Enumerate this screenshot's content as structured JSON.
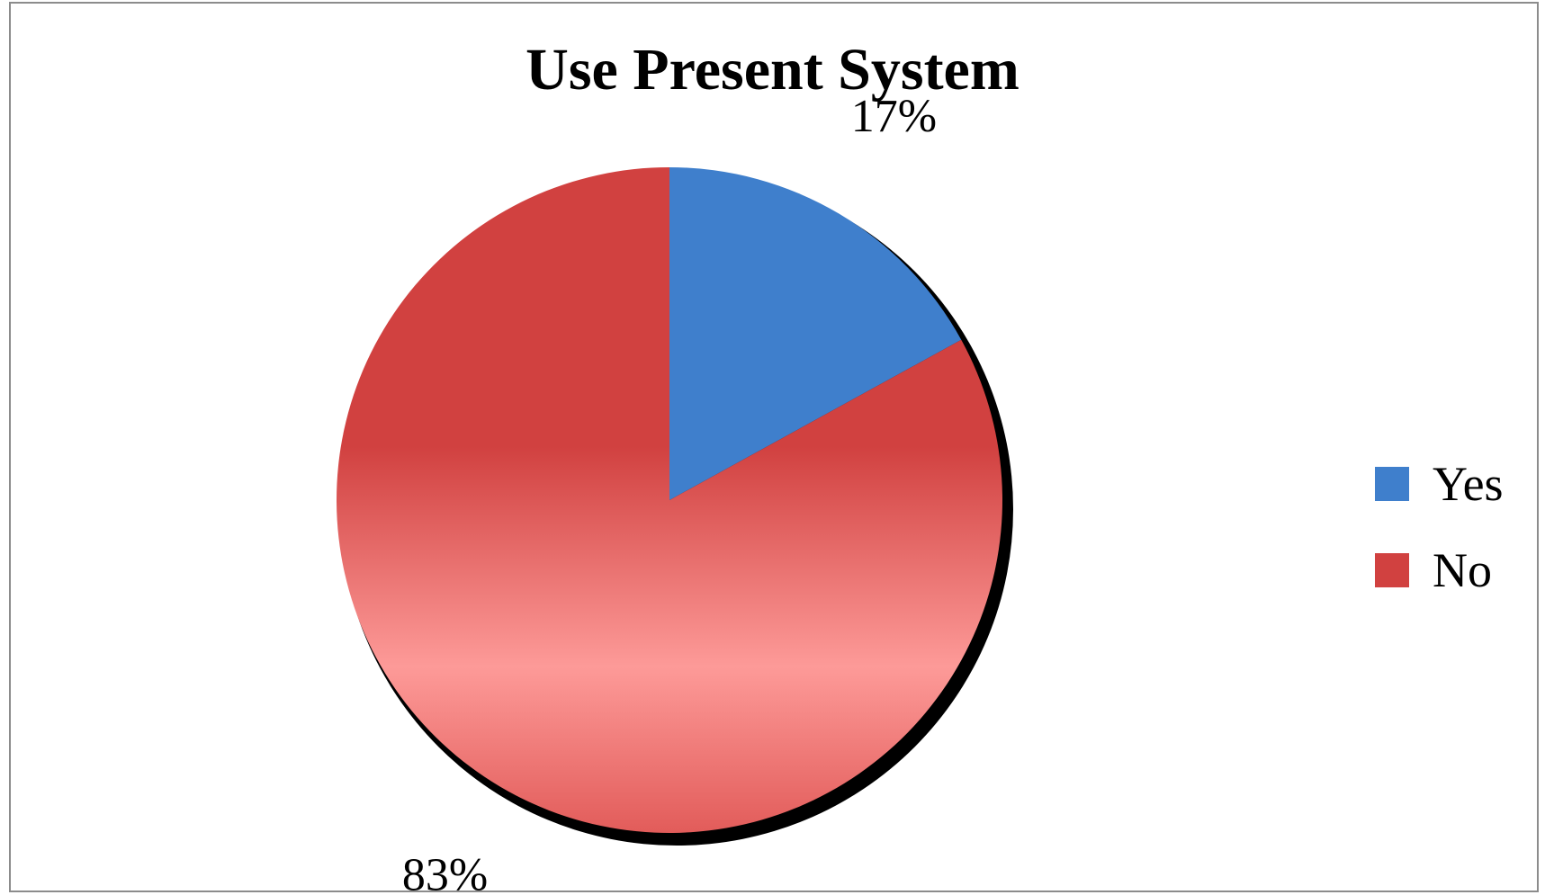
{
  "chart_data": {
    "type": "pie",
    "title": "Use Present System",
    "categories": [
      "Yes",
      "No"
    ],
    "values": [
      17,
      83
    ],
    "value_labels": [
      "17%",
      "83%"
    ],
    "colors": [
      "#3f7fcc",
      "#d14140"
    ],
    "legend": {
      "placement": "right",
      "entries": [
        "Yes",
        "No"
      ]
    }
  }
}
